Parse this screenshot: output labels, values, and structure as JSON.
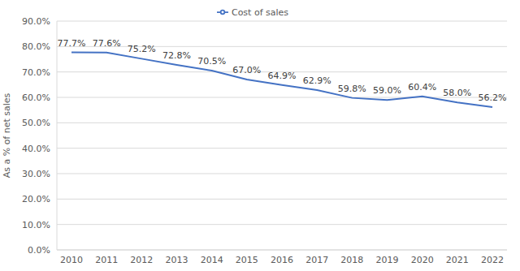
{
  "chart_data": {
    "type": "line",
    "categories": [
      "2010",
      "2011",
      "2012",
      "2013",
      "2014",
      "2015",
      "2016",
      "2017",
      "2018",
      "2019",
      "2020",
      "2021",
      "2022"
    ],
    "series": [
      {
        "name": "Cost of sales",
        "color": "#4472c4",
        "values": [
          77.7,
          77.6,
          75.2,
          72.8,
          70.5,
          67.0,
          64.9,
          62.9,
          59.8,
          59.0,
          60.4,
          58.0,
          56.2
        ],
        "value_labels": [
          "77.7%",
          "77.6%",
          "75.2%",
          "72.8%",
          "70.5%",
          "67.0%",
          "64.9%",
          "62.9%",
          "59.8%",
          "59.0%",
          "60.4%",
          "58.0%",
          "56.2%"
        ]
      }
    ],
    "ylabel": "As a % of net sales",
    "ylim": [
      0,
      90
    ],
    "yticks": [
      {
        "value": 0,
        "label": "0.0%"
      },
      {
        "value": 10,
        "label": "10.0%"
      },
      {
        "value": 20,
        "label": "20.0%"
      },
      {
        "value": 30,
        "label": "30.0%"
      },
      {
        "value": 40,
        "label": "40.0%"
      },
      {
        "value": 50,
        "label": "50.0%"
      },
      {
        "value": 60,
        "label": "60.0%"
      },
      {
        "value": 70,
        "label": "70.0%"
      },
      {
        "value": 80,
        "label": "80.0%"
      },
      {
        "value": 90,
        "label": "90.0%"
      }
    ],
    "grid": true,
    "legend": "top",
    "data_labels": true
  }
}
